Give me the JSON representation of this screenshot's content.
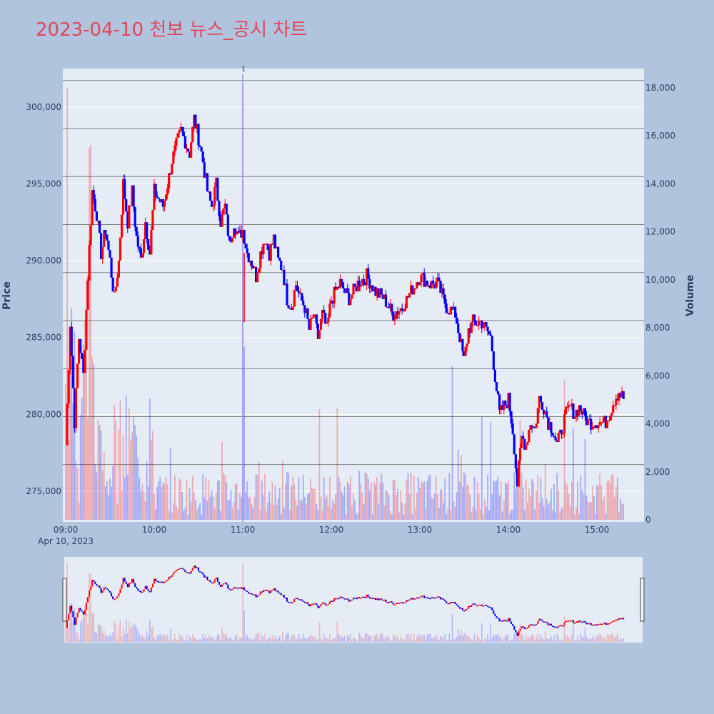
{
  "colors": {
    "page_bg": "#b0c4de",
    "plot_bg": "#e5ecf6",
    "title": "#e0475c",
    "up": "#ff0000",
    "down": "#0000ff",
    "hline": "#808080",
    "news_line": "#8f8fff"
  },
  "chart_data": {
    "type": "candlestick",
    "title": "2023-04-10 천보 뉴스_공시 차트",
    "date_label": "Apr 10, 2023",
    "x_ticks": [
      "09:00",
      "10:00",
      "11:00",
      "12:00",
      "13:00",
      "14:00",
      "15:00"
    ],
    "y_left": {
      "title": "Price",
      "range": [
        273000,
        302500
      ],
      "ticks": [
        275000,
        280000,
        285000,
        290000,
        295000,
        300000
      ],
      "tick_labels": [
        "275,000",
        "280,000",
        "285,000",
        "290,000",
        "295,000",
        "300,000"
      ]
    },
    "y_right": {
      "title": "Volume",
      "range": [
        0,
        18800
      ],
      "ticks": [
        0,
        2000,
        4000,
        6000,
        8000,
        10000,
        12000,
        14000,
        16000,
        18000
      ],
      "tick_labels": [
        "0",
        "2,000",
        "4,000",
        "6,000",
        "8,000",
        "10,000",
        "12,000",
        "14,000",
        "16,000",
        "18,000"
      ]
    },
    "reference_volume_lines": [
      18300,
      16300,
      14300,
      12300,
      10300,
      8300,
      6300,
      4300,
      2300
    ],
    "annotation": {
      "time": "11:00",
      "label": "1"
    },
    "price_path": [
      [
        "09:00",
        278000
      ],
      [
        "09:03",
        286000
      ],
      [
        "09:06",
        279500
      ],
      [
        "09:09",
        285000
      ],
      [
        "09:12",
        282500
      ],
      [
        "09:15",
        289000
      ],
      [
        "09:18",
        294500
      ],
      [
        "09:21",
        293000
      ],
      [
        "09:24",
        290500
      ],
      [
        "09:27",
        292000
      ],
      [
        "09:30",
        290000
      ],
      [
        "09:33",
        287500
      ],
      [
        "09:36",
        290000
      ],
      [
        "09:39",
        295000
      ],
      [
        "09:42",
        292500
      ],
      [
        "09:45",
        294500
      ],
      [
        "09:48",
        291500
      ],
      [
        "09:51",
        290000
      ],
      [
        "09:54",
        292500
      ],
      [
        "09:57",
        290500
      ],
      [
        "10:00",
        294500
      ],
      [
        "10:06",
        293500
      ],
      [
        "10:12",
        296500
      ],
      [
        "10:18",
        298500
      ],
      [
        "10:24",
        297000
      ],
      [
        "10:27",
        299300
      ],
      [
        "10:30",
        298000
      ],
      [
        "10:33",
        296500
      ],
      [
        "10:36",
        294500
      ],
      [
        "10:39",
        293500
      ],
      [
        "10:42",
        295000
      ],
      [
        "10:45",
        292500
      ],
      [
        "10:48",
        293500
      ],
      [
        "10:51",
        291000
      ],
      [
        "10:54",
        292500
      ],
      [
        "10:57",
        291500
      ],
      [
        "11:00",
        292000
      ],
      [
        "11:03",
        290500
      ],
      [
        "11:06",
        290000
      ],
      [
        "11:09",
        289000
      ],
      [
        "11:12",
        290500
      ],
      [
        "11:15",
        291500
      ],
      [
        "11:18",
        290500
      ],
      [
        "11:21",
        291500
      ],
      [
        "11:24",
        290000
      ],
      [
        "11:27",
        289500
      ],
      [
        "11:30",
        287500
      ],
      [
        "11:33",
        287000
      ],
      [
        "11:36",
        288500
      ],
      [
        "11:39",
        287500
      ],
      [
        "11:42",
        287000
      ],
      [
        "11:45",
        285500
      ],
      [
        "11:48",
        286500
      ],
      [
        "11:51",
        285000
      ],
      [
        "11:54",
        286500
      ],
      [
        "11:57",
        285500
      ],
      [
        "12:00",
        287500
      ],
      [
        "12:06",
        288500
      ],
      [
        "12:12",
        287500
      ],
      [
        "12:18",
        288500
      ],
      [
        "12:24",
        289000
      ],
      [
        "12:30",
        288000
      ],
      [
        "12:36",
        287500
      ],
      [
        "12:42",
        286500
      ],
      [
        "12:48",
        287000
      ],
      [
        "12:54",
        288000
      ],
      [
        "13:00",
        289000
      ],
      [
        "13:06",
        288500
      ],
      [
        "13:12",
        288500
      ],
      [
        "13:18",
        287000
      ],
      [
        "13:24",
        286500
      ],
      [
        "13:30",
        283500
      ],
      [
        "13:33",
        285500
      ],
      [
        "13:36",
        286000
      ],
      [
        "13:42",
        286000
      ],
      [
        "13:48",
        285000
      ],
      [
        "13:51",
        282500
      ],
      [
        "13:54",
        280000
      ],
      [
        "13:57",
        280500
      ],
      [
        "14:00",
        281000
      ],
      [
        "14:03",
        279000
      ],
      [
        "14:06",
        275500
      ],
      [
        "14:09",
        278500
      ],
      [
        "14:12",
        278000
      ],
      [
        "14:15",
        279500
      ],
      [
        "14:18",
        279000
      ],
      [
        "14:21",
        281000
      ],
      [
        "14:24",
        280500
      ],
      [
        "14:27",
        279500
      ],
      [
        "14:30",
        279000
      ],
      [
        "14:33",
        278000
      ],
      [
        "14:36",
        279000
      ],
      [
        "14:39",
        280000
      ],
      [
        "14:42",
        280500
      ],
      [
        "14:45",
        280000
      ],
      [
        "14:48",
        280500
      ],
      [
        "14:51",
        280000
      ],
      [
        "14:54",
        279500
      ],
      [
        "15:00",
        279500
      ],
      [
        "15:06",
        279500
      ],
      [
        "15:12",
        281000
      ],
      [
        "15:15",
        281500
      ],
      [
        "15:18",
        281000
      ]
    ]
  }
}
